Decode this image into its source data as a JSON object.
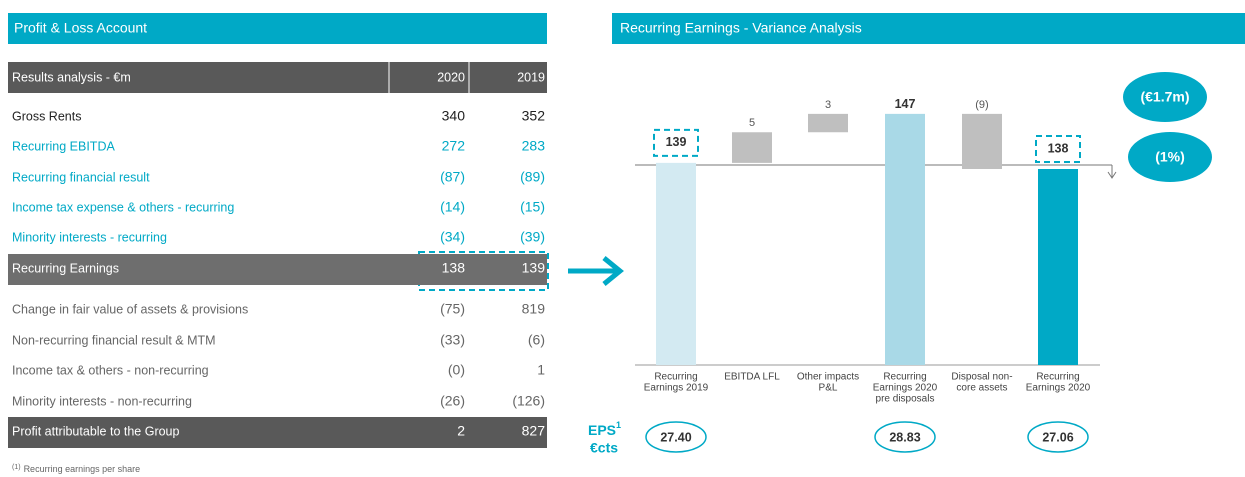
{
  "left": {
    "title": "Profit & Loss Account"
  },
  "table": {
    "header": [
      "Results analysis - €m",
      "2020",
      "2019"
    ],
    "rows": [
      {
        "label": "Gross Rents",
        "values": [
          "340",
          "352"
        ],
        "style": "plain"
      },
      {
        "label": "Recurring EBITDA",
        "values": [
          "272",
          "283"
        ],
        "style": "teal"
      },
      {
        "label": "Recurring financial result",
        "values": [
          "(87)",
          "(89)"
        ],
        "style": "teal"
      },
      {
        "label": "Income tax expense & others - recurring",
        "values": [
          "(14)",
          "(15)"
        ],
        "style": "teal"
      },
      {
        "label": "Minority interests - recurring",
        "values": [
          "(34)",
          "(39)"
        ],
        "style": "teal"
      },
      {
        "label": "Recurring Earnings",
        "values": [
          "138",
          "139"
        ],
        "style": "band"
      },
      {
        "label": "Change in fair value of assets & provisions",
        "values": [
          "(75)",
          "819"
        ],
        "style": "gray"
      },
      {
        "label": "Non-recurring financial result & MTM",
        "values": [
          "(33)",
          "(6)"
        ],
        "style": "gray"
      },
      {
        "label": "Income tax & others - non-recurring",
        "values": [
          "(0)",
          "1"
        ],
        "style": "gray"
      },
      {
        "label": "Minority interests - non-recurring",
        "values": [
          "(26)",
          "(126)"
        ],
        "style": "gray"
      },
      {
        "label": "Profit attributable to the Group",
        "values": [
          "2",
          "827"
        ],
        "style": "total"
      }
    ]
  },
  "footnote": {
    "mark": "(1)",
    "text": "Recurring earnings per share"
  },
  "chart_data": {
    "type": "waterfall",
    "title": "Recurring Earnings - Variance Analysis",
    "categories": [
      [
        "Recurring",
        "Earnings 2019"
      ],
      [
        "EBITDA LFL"
      ],
      [
        "Other impacts",
        "P&L"
      ],
      [
        "Recurring",
        "Earnings 2020",
        "pre disposals"
      ],
      [
        "Disposal non-",
        "core assets"
      ],
      [
        "Recurring",
        "Earnings 2020"
      ]
    ],
    "values": [
      139,
      5,
      3,
      147,
      -9,
      138
    ],
    "value_labels": [
      "139",
      "5",
      "3",
      "147",
      "(9)",
      "138"
    ],
    "bar_types": [
      "total",
      "delta",
      "delta",
      "total",
      "delta",
      "total"
    ],
    "colors": [
      "#d3eaf2",
      "#bfbfbf",
      "#bfbfbf",
      "#a9d9e7",
      "#bfbfbf",
      "#00a9c6"
    ],
    "ylim": [
      106,
      150
    ],
    "eps": {
      "label": "EPS",
      "sup": "1",
      "unit": "€cts",
      "values": [
        "27.40",
        null,
        null,
        "28.83",
        null,
        "27.06"
      ]
    },
    "callouts": [
      "(€1.7m)",
      "(1%)"
    ]
  }
}
